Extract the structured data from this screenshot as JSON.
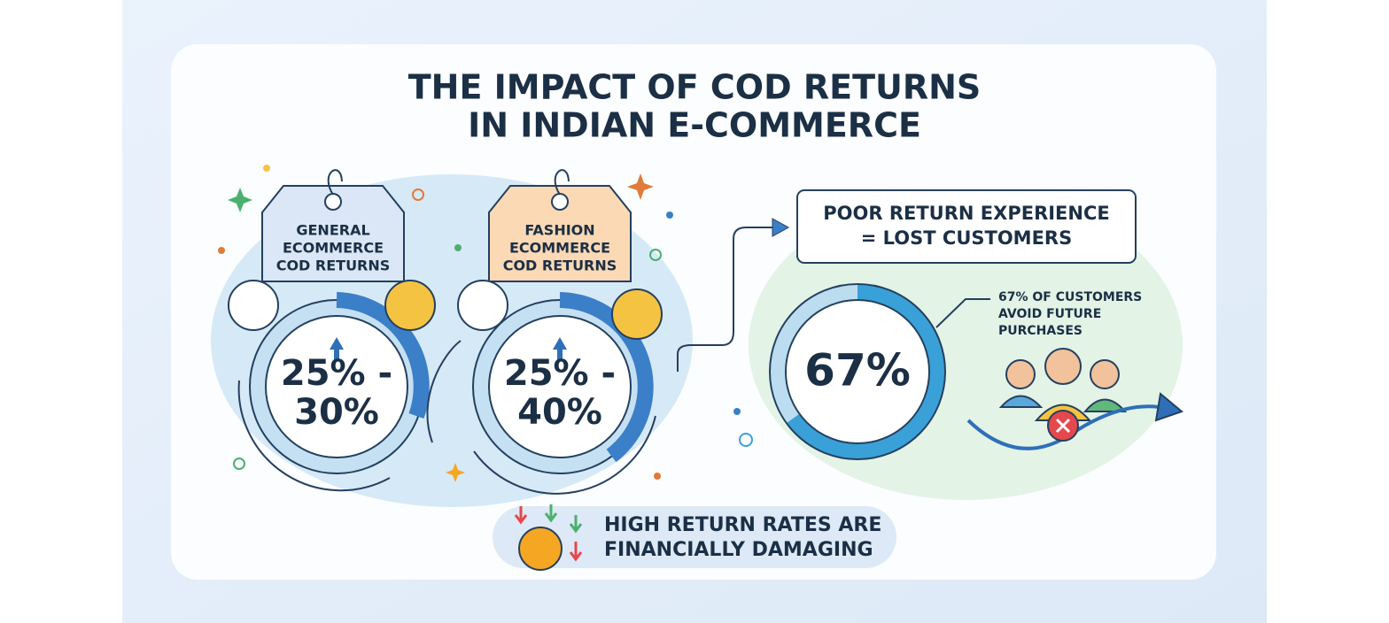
{
  "title": [
    "THE IMPACT OF COD RETURNS",
    "IN INDIAN E-COMMERCE"
  ],
  "cards": [
    {
      "tag": [
        "GENERAL",
        "ECOMMERCE",
        "COD RETURNS"
      ],
      "value": [
        "25% -",
        "30%"
      ]
    },
    {
      "tag": [
        "FASHION",
        "ECOMMERCE",
        "COD RETURNS"
      ],
      "value": [
        "25% -",
        "40%"
      ]
    }
  ],
  "callout": {
    "heading": [
      "POOR RETURN EXPERIENCE",
      "= LOST CUSTOMERS"
    ],
    "value": "67%",
    "note": [
      "67% OF CUSTOMERS",
      "AVOID FUTURE",
      "PURCHASES"
    ]
  },
  "footer": [
    "HIGH RETURN RATES ARE",
    "FINANCIALLY DAMAGING"
  ]
}
